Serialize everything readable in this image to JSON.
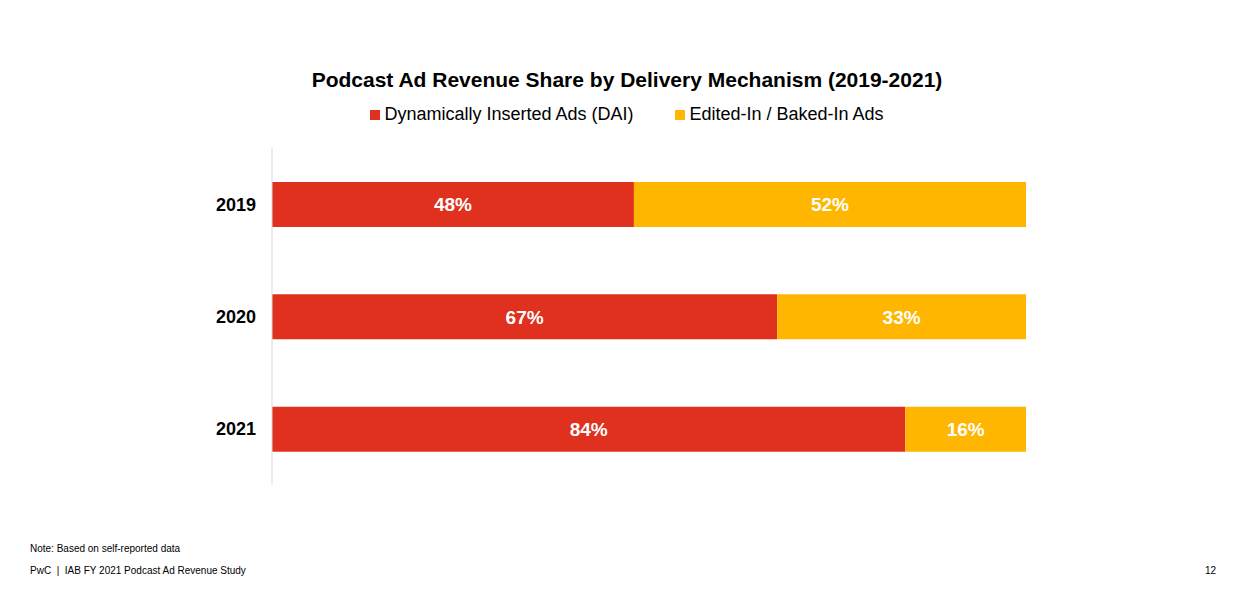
{
  "chart_data": {
    "type": "bar",
    "orientation": "horizontal",
    "stacked": true,
    "title": "Podcast Ad Revenue Share by Delivery Mechanism (2019-2021)",
    "categories": [
      "2019",
      "2020",
      "2021"
    ],
    "series": [
      {
        "name": "Dynamically Inserted Ads (DAI)",
        "color": "#e0301e",
        "values": [
          48,
          67,
          84
        ],
        "value_labels": [
          "48%",
          "67%",
          "84%"
        ]
      },
      {
        "name": "Edited-In / Baked-In Ads",
        "color": "#ffb600",
        "values": [
          52,
          33,
          16
        ],
        "value_labels": [
          "52%",
          "33%",
          "16%"
        ]
      }
    ],
    "xlim": [
      0,
      100
    ],
    "data_labels": true,
    "tick_labels": "y",
    "grid": false,
    "legend": "top",
    "annotations": [
      "Note: Based on self-reported data",
      "PwC  |  IAB FY 2021 Podcast Ad Revenue Study",
      "12"
    ]
  }
}
